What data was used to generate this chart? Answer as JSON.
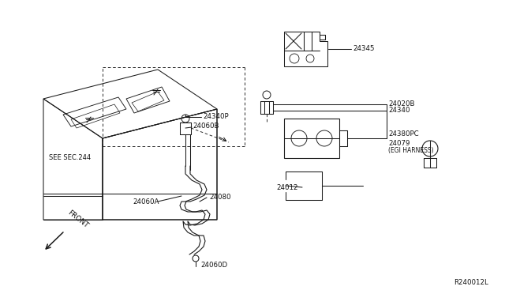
{
  "bg_color": "#ffffff",
  "line_color": "#1a1a1a",
  "text_color": "#111111",
  "fig_width": 6.4,
  "fig_height": 3.72,
  "dpi": 100,
  "ref_code": "R240012L",
  "labels": {
    "SEE_SEC": "SEE SEC.244",
    "FRONT": "FRONT",
    "24340P": "24340P",
    "24060B": "24060B",
    "24060A": "24060A",
    "24060D": "24060D",
    "24080": "24080",
    "24345": "24345",
    "24020B": "24020B",
    "24340": "24340",
    "24380PC": "24380PC",
    "24079": "24079",
    "EGI_HARNESS": "(EGI HARNESS)",
    "24012": "24012"
  }
}
